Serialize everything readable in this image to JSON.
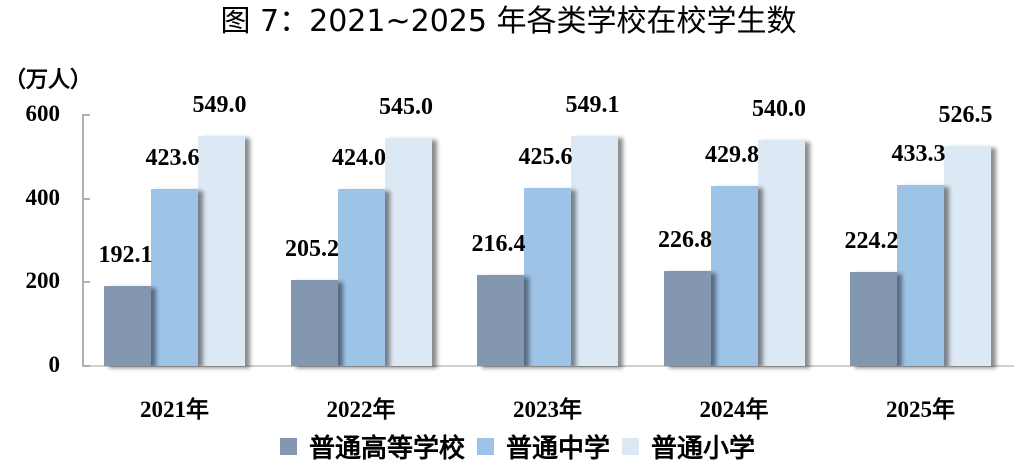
{
  "title": "图 7：2021~2025 年各类学校在校学生数",
  "unit_label": "（万人）",
  "y_ticks": [
    "0",
    "200",
    "400",
    "600"
  ],
  "colors": {
    "higher_edu": "#8497b0",
    "secondary": "#9dc3e6",
    "primary": "#dde8f5"
  },
  "legend": [
    {
      "label": "普通高等学校",
      "color": "#8497b0"
    },
    {
      "label": "普通中学",
      "color": "#9dc3e6"
    },
    {
      "label": "普通小学",
      "color": "#dde8f5"
    }
  ],
  "chart_data": {
    "type": "bar",
    "title": "图 7：2021~2025 年各类学校在校学生数",
    "xlabel": "",
    "ylabel": "（万人）",
    "ylim": [
      0,
      600
    ],
    "yticks": [
      0,
      200,
      400,
      600
    ],
    "grid": false,
    "legend_position": "bottom",
    "categories": [
      "2021年",
      "2022年",
      "2023年",
      "2024年",
      "2025年"
    ],
    "series": [
      {
        "name": "普通高等学校",
        "values": [
          192.1,
          205.2,
          216.4,
          226.8,
          224.2
        ]
      },
      {
        "name": "普通中学",
        "values": [
          423.6,
          424.0,
          425.6,
          429.8,
          433.3
        ]
      },
      {
        "name": "普通小学",
        "values": [
          549.0,
          545.0,
          549.1,
          540.0,
          526.5
        ]
      }
    ],
    "data_labels": [
      [
        "192.1",
        "205.2",
        "216.4",
        "226.8",
        "224.2"
      ],
      [
        "423.6",
        "424.0",
        "425.6",
        "429.8",
        "433.3"
      ],
      [
        "549.0",
        "545.0",
        "549.1",
        "540.0",
        "526.5"
      ]
    ]
  }
}
